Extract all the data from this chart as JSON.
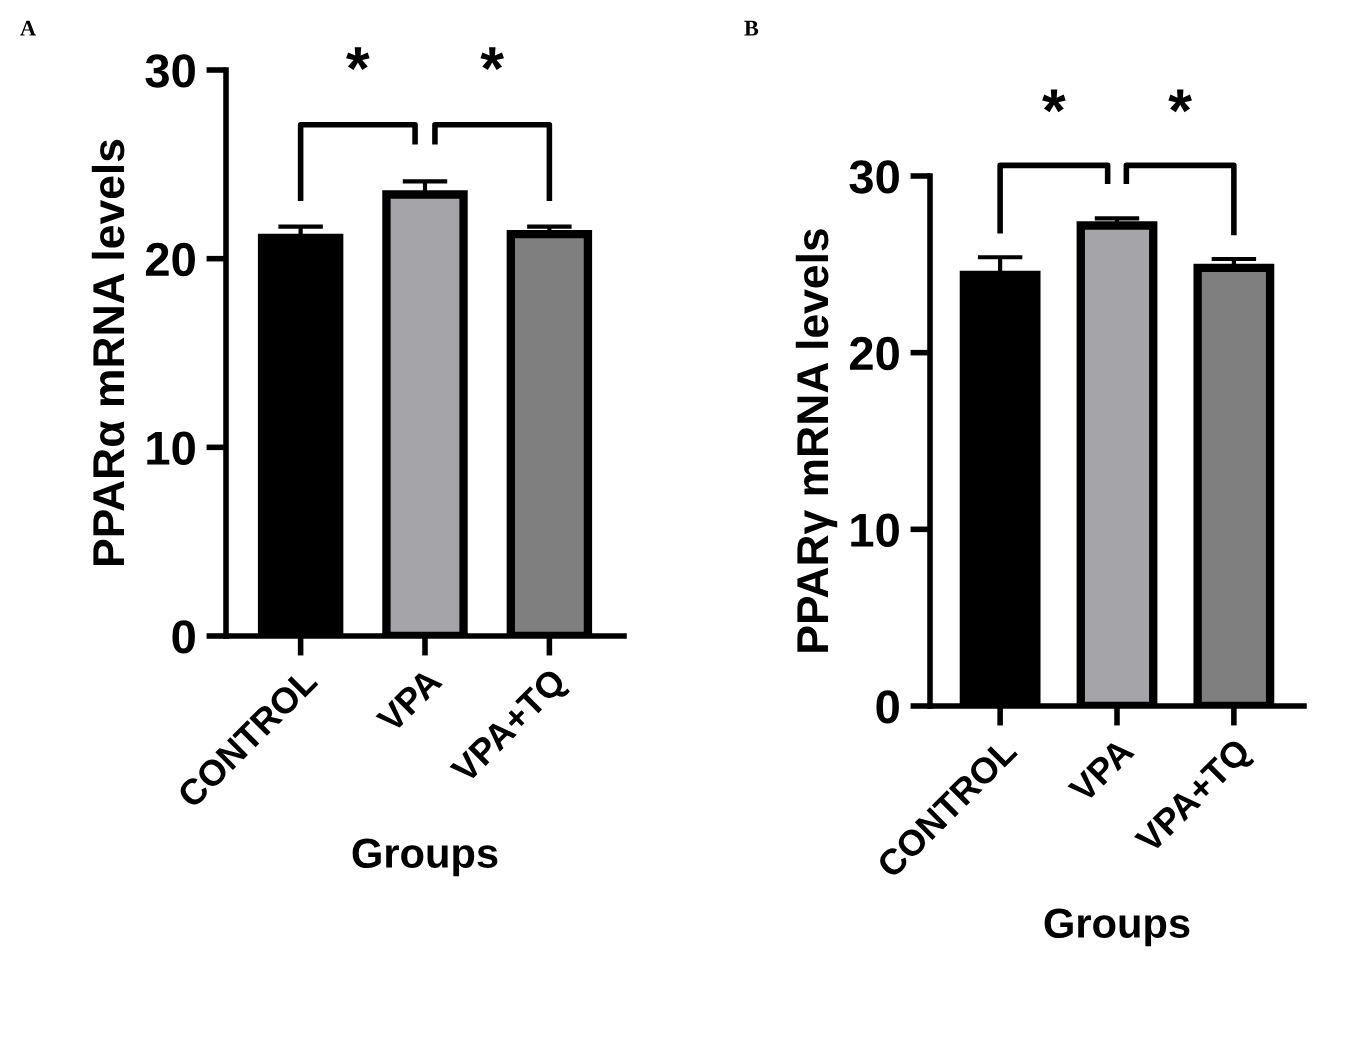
{
  "chart_data": [
    {
      "type": "bar",
      "ylabel": "PPARα mRNA levels",
      "xlabel": "Groups",
      "categories": [
        "CONTROL",
        "VPA",
        "VPA+TQ"
      ],
      "values": [
        21.1,
        23.4,
        21.3
      ],
      "errors": [
        0.6,
        0.7,
        0.4
      ],
      "colors": [
        "#000000",
        "#a5a5a9",
        "#7f7f7f"
      ],
      "ylim": [
        0,
        30
      ],
      "yticks": [
        0,
        10,
        20,
        30
      ],
      "grid": false,
      "annotations": [
        "A",
        "*",
        "*"
      ]
    },
    {
      "type": "bar",
      "ylabel": "PPARγ mRNA levels",
      "xlabel": "Groups",
      "categories": [
        "CONTROL",
        "VPA",
        "VPA+TQ"
      ],
      "values": [
        24.4,
        27.2,
        24.8
      ],
      "errors": [
        1.0,
        0.4,
        0.5
      ],
      "colors": [
        "#000000",
        "#a5a5a9",
        "#7f7f7f"
      ],
      "ylim": [
        0,
        30
      ],
      "yticks": [
        0,
        10,
        20,
        30
      ],
      "grid": false,
      "annotations": [
        "B",
        "*",
        "*"
      ]
    }
  ]
}
